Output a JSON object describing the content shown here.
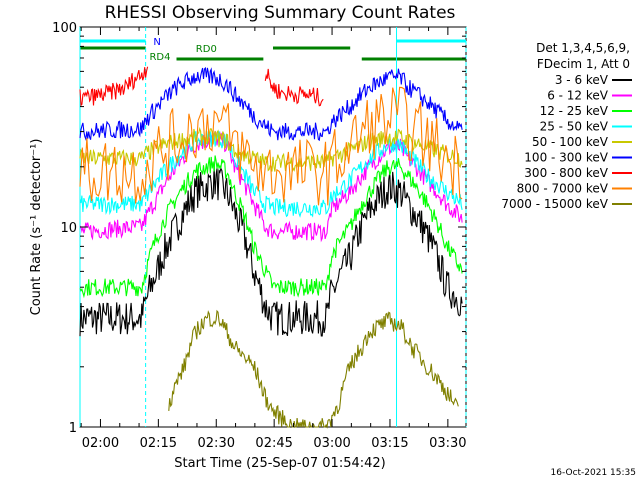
{
  "chart_data": {
    "type": "line",
    "title": "RHESSI Observing Summary Count Rates",
    "xlabel": "Start Time (25-Sep-07 01:54:42)",
    "ylabel": "Count Rate (s⁻¹ detector⁻¹)",
    "y_scale": "log",
    "ylim": [
      1,
      100
    ],
    "x_range_minutes_after_01_54_42": [
      0,
      100
    ],
    "y_tick_labels": [
      "100",
      "10",
      "1"
    ],
    "x_tick_labels": [
      "02:00",
      "02:15",
      "02:30",
      "02:45",
      "03:00",
      "03:15",
      "03:30"
    ],
    "x_tick_positions_min": [
      5.3,
      20.3,
      35.3,
      50.3,
      65.3,
      80.3,
      95.3
    ],
    "legend_header": [
      "Det 1,3,4,5,6,9,",
      "FDecim 1, Att 0"
    ],
    "series": [
      {
        "name": "3 - 6 keV",
        "color": "#000000",
        "x": [
          0,
          16,
          17,
          20,
          25,
          30,
          35,
          38,
          40,
          45,
          48,
          50,
          55,
          60,
          64,
          65,
          70,
          75,
          80,
          83,
          85,
          90,
          95,
          99
        ],
        "y": [
          3.5,
          3.5,
          4.2,
          6,
          10,
          15,
          17,
          15,
          12,
          6,
          4,
          3.5,
          3.5,
          3.5,
          3.5,
          4.5,
          7,
          12,
          16,
          15,
          13,
          9,
          5,
          4.2
        ]
      },
      {
        "name": "6 - 12 keV",
        "color": "#ff00ff",
        "x": [
          0,
          16,
          17,
          20,
          25,
          30,
          35,
          38,
          40,
          45,
          48,
          50,
          55,
          60,
          64,
          65,
          70,
          75,
          80,
          83,
          85,
          90,
          95,
          99
        ],
        "y": [
          9.5,
          10,
          11,
          14,
          20,
          26,
          28,
          26,
          20,
          13,
          10,
          9.5,
          9.5,
          9.5,
          9.5,
          12,
          15,
          20,
          25,
          25,
          22,
          17,
          13,
          11
        ]
      },
      {
        "name": "12 - 25 keV",
        "color": "#00ff00",
        "x": [
          0,
          16,
          17,
          20,
          25,
          30,
          35,
          38,
          40,
          45,
          48,
          50,
          55,
          60,
          64,
          65,
          70,
          75,
          80,
          83,
          85,
          90,
          95,
          99
        ],
        "y": [
          5,
          5,
          6,
          9,
          14,
          19,
          21,
          19,
          15,
          8,
          6,
          5,
          5,
          5,
          5,
          7,
          10,
          15,
          20,
          20,
          18,
          13,
          8,
          6
        ]
      },
      {
        "name": "25 - 50 keV",
        "color": "#00ffff",
        "x": [
          0,
          16,
          17,
          20,
          25,
          30,
          35,
          38,
          40,
          45,
          48,
          50,
          55,
          60,
          64,
          65,
          70,
          75,
          80,
          83,
          85,
          90,
          95,
          99
        ],
        "y": [
          13,
          13,
          14,
          17,
          22,
          27,
          28,
          27,
          22,
          15,
          13,
          12.5,
          12.5,
          12.5,
          12.5,
          14,
          17,
          22,
          26,
          26,
          23,
          18,
          15,
          13
        ]
      },
      {
        "name": "50 - 100 keV",
        "color": "#c8c800",
        "x": [
          0,
          16,
          17,
          20,
          25,
          30,
          35,
          38,
          40,
          45,
          48,
          50,
          55,
          60,
          64,
          65,
          70,
          75,
          80,
          83,
          85,
          90,
          95,
          99
        ],
        "y": [
          22,
          22,
          23,
          25,
          27,
          28,
          28,
          27,
          24,
          22,
          21,
          21,
          21,
          21,
          21,
          22,
          24,
          27,
          28,
          28,
          27,
          25,
          23,
          22
        ]
      },
      {
        "name": "100 - 300 keV",
        "color": "#0000ff",
        "x": [
          0,
          16,
          17,
          20,
          25,
          30,
          35,
          38,
          40,
          45,
          48,
          50,
          55,
          60,
          64,
          65,
          70,
          75,
          80,
          83,
          85,
          90,
          95,
          99
        ],
        "y": [
          30,
          31,
          34,
          40,
          50,
          57,
          56,
          52,
          46,
          36,
          32,
          30,
          30,
          30,
          30,
          33,
          40,
          50,
          56,
          56,
          50,
          42,
          34,
          30
        ]
      },
      {
        "name": "300 - 800 keV",
        "color": "#ff0000",
        "x": [
          0,
          4,
          8,
          12,
          14,
          16,
          17,
          17.5
        ],
        "y": [
          44,
          45,
          47,
          50,
          55,
          58,
          62,
          64
        ]
      },
      {
        "name": "300 - 800 keV (RD0 segment 2)",
        "color": "#ff0000",
        "x": [
          48,
          49,
          50,
          52,
          55,
          58,
          61,
          63
        ],
        "y": [
          58,
          55,
          50,
          47,
          46,
          46,
          45,
          44
        ]
      },
      {
        "name": "800 - 7000 keV",
        "color": "#ff8000",
        "x": [
          0,
          16,
          17,
          20,
          25,
          30,
          35,
          38,
          40,
          45,
          48,
          50,
          55,
          60,
          64,
          65,
          70,
          75,
          80,
          83,
          85,
          90,
          95,
          99
        ],
        "y": [
          19,
          19,
          20,
          23,
          27,
          32,
          34,
          30,
          26,
          20,
          19,
          19,
          19,
          19,
          19,
          20,
          25,
          32,
          35,
          35,
          32,
          27,
          22,
          20
        ]
      },
      {
        "name": "7000 - 15000 keV",
        "color": "#808000",
        "x": [
          23,
          27,
          30,
          33,
          36,
          40,
          45,
          48,
          50,
          55,
          60,
          64,
          67,
          70,
          73,
          75,
          80,
          83,
          86,
          90,
          95,
          98
        ],
        "y": [
          1.3,
          2,
          3,
          3.5,
          3.5,
          2.5,
          2,
          1.4,
          1.2,
          1.0,
          1.0,
          1.0,
          1.3,
          2,
          2.5,
          3,
          3.4,
          3.2,
          2.5,
          2,
          1.5,
          1.2
        ]
      }
    ],
    "status_flags": [
      {
        "label": "N",
        "color": "#00ffff",
        "x_start": 0,
        "x_end": 17,
        "label_at": 19
      },
      {
        "label": "",
        "color": "#00ffff",
        "x_start": 82,
        "x_end": 100
      }
    ],
    "rate_flags": [
      {
        "label": "RD4",
        "color": "#008000",
        "x_start": 0,
        "x_end": 17,
        "label_at": 18
      },
      {
        "label": "RD0",
        "color": "#008000",
        "x_start": 25,
        "x_end": 47.5,
        "label_at": 30
      },
      {
        "label": "",
        "color": "#008000",
        "x_start": 50,
        "x_end": 70
      },
      {
        "label": "",
        "color": "#008000",
        "x_start": 73,
        "x_end": 100
      }
    ],
    "saa_night_lines_min": [
      0,
      17,
      82,
      100
    ],
    "grid": false,
    "legend_placement": "right"
  },
  "timestamp": "16-Oct-2021 15:35"
}
